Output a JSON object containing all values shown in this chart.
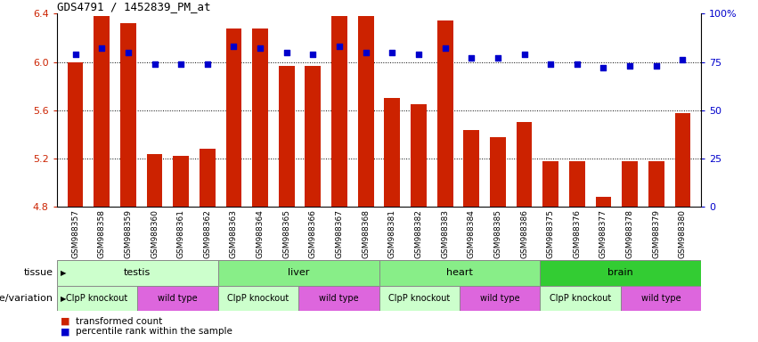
{
  "title": "GDS4791 / 1452839_PM_at",
  "samples": [
    "GSM988357",
    "GSM988358",
    "GSM988359",
    "GSM988360",
    "GSM988361",
    "GSM988362",
    "GSM988363",
    "GSM988364",
    "GSM988365",
    "GSM988366",
    "GSM988367",
    "GSM988368",
    "GSM988381",
    "GSM988382",
    "GSM988383",
    "GSM988384",
    "GSM988385",
    "GSM988386",
    "GSM988375",
    "GSM988376",
    "GSM988377",
    "GSM988378",
    "GSM988379",
    "GSM988380"
  ],
  "bar_values": [
    6.0,
    6.38,
    6.32,
    5.24,
    5.22,
    5.28,
    6.28,
    6.28,
    5.97,
    5.97,
    6.38,
    6.38,
    5.7,
    5.65,
    6.34,
    5.44,
    5.38,
    5.5,
    5.18,
    5.18,
    4.88,
    5.18,
    5.18,
    5.58
  ],
  "percentile_values": [
    79,
    82,
    80,
    74,
    74,
    74,
    83,
    82,
    80,
    79,
    83,
    80,
    80,
    79,
    82,
    77,
    77,
    79,
    74,
    74,
    72,
    73,
    73,
    76
  ],
  "bar_bottom": 4.8,
  "ylim": [
    4.8,
    6.4
  ],
  "yticks": [
    4.8,
    5.2,
    5.6,
    6.0,
    6.4
  ],
  "right_ylim": [
    0,
    100
  ],
  "right_yticks": [
    0,
    25,
    50,
    75,
    100
  ],
  "bar_color": "#cc2200",
  "dot_color": "#0000cc",
  "tissue_groups": [
    {
      "label": "testis",
      "start": 0,
      "end": 6,
      "color": "#ccffcc"
    },
    {
      "label": "liver",
      "start": 6,
      "end": 12,
      "color": "#88ee88"
    },
    {
      "label": "heart",
      "start": 12,
      "end": 18,
      "color": "#88ee88"
    },
    {
      "label": "brain",
      "start": 18,
      "end": 24,
      "color": "#33cc33"
    }
  ],
  "genotype_groups": [
    {
      "label": "ClpP knockout",
      "start": 0,
      "end": 3,
      "color": "#ccffcc"
    },
    {
      "label": "wild type",
      "start": 3,
      "end": 6,
      "color": "#dd66dd"
    },
    {
      "label": "ClpP knockout",
      "start": 6,
      "end": 9,
      "color": "#ccffcc"
    },
    {
      "label": "wild type",
      "start": 9,
      "end": 12,
      "color": "#dd66dd"
    },
    {
      "label": "ClpP knockout",
      "start": 12,
      "end": 15,
      "color": "#ccffcc"
    },
    {
      "label": "wild type",
      "start": 15,
      "end": 18,
      "color": "#dd66dd"
    },
    {
      "label": "ClpP knockout",
      "start": 18,
      "end": 21,
      "color": "#ccffcc"
    },
    {
      "label": "wild type",
      "start": 21,
      "end": 24,
      "color": "#dd66dd"
    }
  ],
  "legend_items": [
    {
      "label": "transformed count",
      "color": "#cc2200"
    },
    {
      "label": "percentile rank within the sample",
      "color": "#0000cc"
    }
  ],
  "grid_dotted_values": [
    6.0,
    5.6,
    5.2
  ],
  "bg_color": "#ffffff",
  "axis_color_left": "#cc2200",
  "axis_color_right": "#0000cc"
}
